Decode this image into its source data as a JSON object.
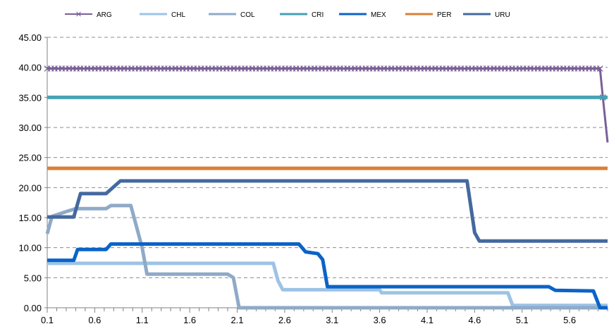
{
  "chart_data": {
    "type": "line",
    "title": "",
    "xlabel": "",
    "ylabel": "",
    "xlim": [
      0.1,
      6.0
    ],
    "ylim": [
      0,
      45
    ],
    "x_tick_labels": [
      "0.1",
      "0.6",
      "1.1",
      "1.6",
      "2.1",
      "2.6",
      "3.1",
      "3.6",
      "4.1",
      "4.6",
      "5.1",
      "5.6"
    ],
    "y_tick_labels": [
      "0.00",
      "5.00",
      "10.00",
      "15.00",
      "20.00",
      "25.00",
      "30.00",
      "35.00",
      "40.00",
      "45.00"
    ],
    "grid": "horizontal dashed",
    "legend_position": "top",
    "series": [
      {
        "name": "ARG",
        "color": "#7a5f97",
        "marker": "x",
        "points": [
          [
            0.1,
            39.8
          ],
          [
            5.92,
            39.8
          ],
          [
            5.95,
            35.0
          ],
          [
            6.0,
            27.5
          ]
        ]
      },
      {
        "name": "CHL",
        "color": "#9dc3e6",
        "points": [
          [
            0.1,
            7.4
          ],
          [
            2.48,
            7.4
          ],
          [
            2.53,
            4.5
          ],
          [
            2.58,
            3.0
          ],
          [
            3.6,
            3.0
          ],
          [
            3.62,
            2.5
          ],
          [
            4.95,
            2.5
          ],
          [
            5.0,
            0.4
          ],
          [
            6.0,
            0.4
          ]
        ]
      },
      {
        "name": "COL",
        "color": "#8faac8",
        "points": [
          [
            0.1,
            12.3
          ],
          [
            0.15,
            15.2
          ],
          [
            0.3,
            16.0
          ],
          [
            0.4,
            16.5
          ],
          [
            0.72,
            16.5
          ],
          [
            0.77,
            17.0
          ],
          [
            0.98,
            17.0
          ],
          [
            1.1,
            10.0
          ],
          [
            1.15,
            5.6
          ],
          [
            2.0,
            5.6
          ],
          [
            2.06,
            5.0
          ],
          [
            2.12,
            0.0
          ],
          [
            6.0,
            0.0
          ]
        ]
      },
      {
        "name": "CRI",
        "color": "#46a1b3",
        "points": [
          [
            0.1,
            35.0
          ],
          [
            6.0,
            35.0
          ]
        ]
      },
      {
        "name": "MEX",
        "color": "#0b63c7",
        "points": [
          [
            0.1,
            7.9
          ],
          [
            0.38,
            7.9
          ],
          [
            0.42,
            9.7
          ],
          [
            0.72,
            9.7
          ],
          [
            0.77,
            10.6
          ],
          [
            2.75,
            10.6
          ],
          [
            2.82,
            9.3
          ],
          [
            2.95,
            9.0
          ],
          [
            3.0,
            8.0
          ],
          [
            3.05,
            3.5
          ],
          [
            5.38,
            3.5
          ],
          [
            5.45,
            2.9
          ],
          [
            5.85,
            2.8
          ],
          [
            5.92,
            0.0
          ],
          [
            6.0,
            0.0
          ]
        ]
      },
      {
        "name": "PER",
        "color": "#d9803a",
        "points": [
          [
            0.1,
            23.2
          ],
          [
            6.0,
            23.2
          ]
        ]
      },
      {
        "name": "URU",
        "color": "#44699f",
        "points": [
          [
            0.1,
            15.1
          ],
          [
            0.38,
            15.1
          ],
          [
            0.45,
            19.0
          ],
          [
            0.72,
            19.0
          ],
          [
            0.87,
            21.1
          ],
          [
            4.52,
            21.1
          ],
          [
            4.6,
            12.5
          ],
          [
            4.65,
            11.1
          ],
          [
            6.0,
            11.1
          ]
        ]
      }
    ]
  }
}
